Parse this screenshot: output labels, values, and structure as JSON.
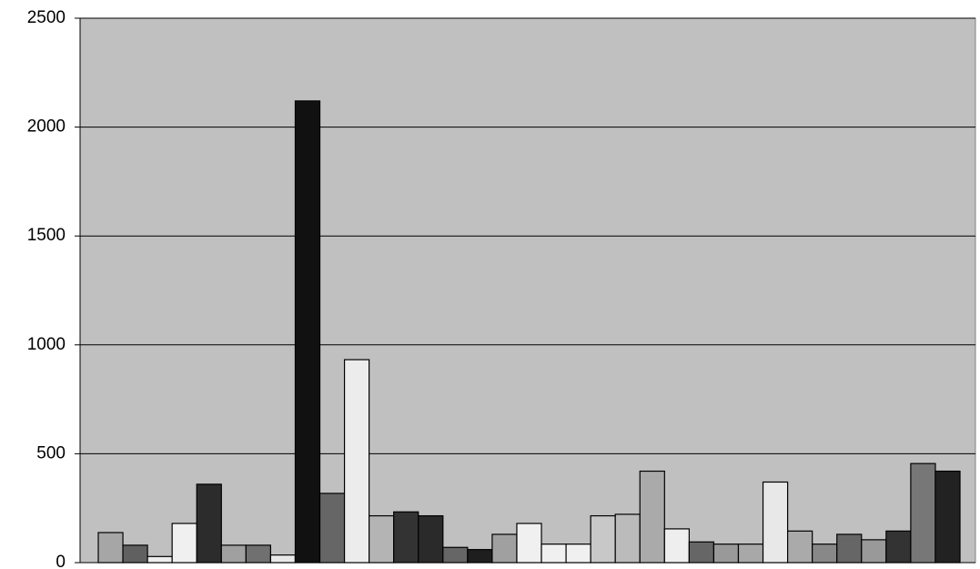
{
  "chart_data": {
    "type": "bar",
    "categories": [
      null,
      null,
      null,
      null,
      null,
      null,
      null,
      null,
      null,
      null,
      null,
      null,
      null,
      null,
      null,
      null,
      null,
      null,
      null,
      null,
      null,
      null,
      null,
      null,
      null,
      null,
      null,
      null,
      null,
      null,
      null,
      null,
      null,
      null,
      null
    ],
    "values": [
      138,
      80,
      28,
      180,
      360,
      80,
      80,
      35,
      2120,
      318,
      932,
      215,
      233,
      215,
      70,
      60,
      130,
      180,
      85,
      85,
      215,
      222,
      420,
      155,
      95,
      85,
      85,
      370,
      145,
      85,
      130,
      105,
      145,
      455,
      420
    ],
    "colors": [
      "#a6a6a6",
      "#606060",
      "#eeeeee",
      "#f0f0f0",
      "#2c2c2c",
      "#a0a0a0",
      "#707070",
      "#e8e8e8",
      "#111111",
      "#666666",
      "#ececec",
      "#b4b4b4",
      "#333333",
      "#2a2a2a",
      "#666666",
      "#1e1e1e",
      "#a0a0a0",
      "#f0f0f0",
      "#f0f0f0",
      "#f0f0f0",
      "#c8c8c8",
      "#bbbbbb",
      "#aaaaaa",
      "#eeeeee",
      "#666666",
      "#999999",
      "#a8a8a8",
      "#e8e8e8",
      "#aaaaaa",
      "#888888",
      "#666666",
      "#999999",
      "#333333",
      "#777777",
      "#222222"
    ],
    "ylim": [
      0,
      2500
    ],
    "yticks": [
      0,
      500,
      1000,
      1500,
      2000,
      2500
    ],
    "grid": true
  }
}
